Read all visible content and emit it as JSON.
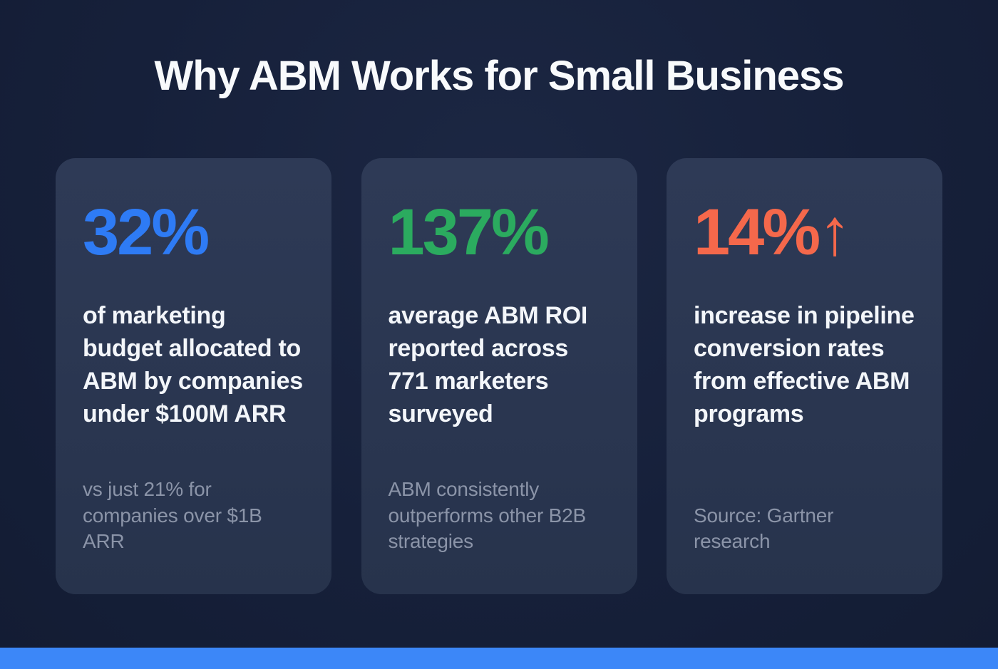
{
  "page": {
    "title": "Why ABM Works for Small Business",
    "background_color": "#16203a",
    "card_background": "#2b3850",
    "accent_bar_color": "#3c87f8"
  },
  "chart_data": {
    "type": "table",
    "title": "Why ABM Works for Small Business",
    "columns": [
      "statistic",
      "description",
      "note"
    ],
    "rows": [
      [
        "32%",
        "of marketing budget allocated to ABM by companies under $100M ARR",
        "vs just 21% for companies over $1B ARR"
      ],
      [
        "137%",
        "average ABM ROI reported across 771 marketers surveyed",
        "ABM consistently outperforms other B2B strategies"
      ],
      [
        "14% ↑",
        "increase in pipeline conversion rates from effective ABM programs",
        "Source: Gartner research"
      ]
    ]
  },
  "cards": [
    {
      "stat": "32%",
      "stat_color": "#2e7bf5",
      "description": "of marketing budget allocated to ABM by companies under $100M ARR",
      "note": "vs just 21% for companies over $1B ARR"
    },
    {
      "stat": "137%",
      "stat_color": "#2bab5f",
      "description": "average ABM ROI reported across 771 marketers surveyed",
      "note": "ABM consistently outperforms other B2B strategies"
    },
    {
      "stat": "14%",
      "arrow": "↑",
      "stat_color": "#f5684b",
      "description": "increase in pipeline conversion rates from effective ABM programs",
      "note": "Source: Gartner research"
    }
  ]
}
